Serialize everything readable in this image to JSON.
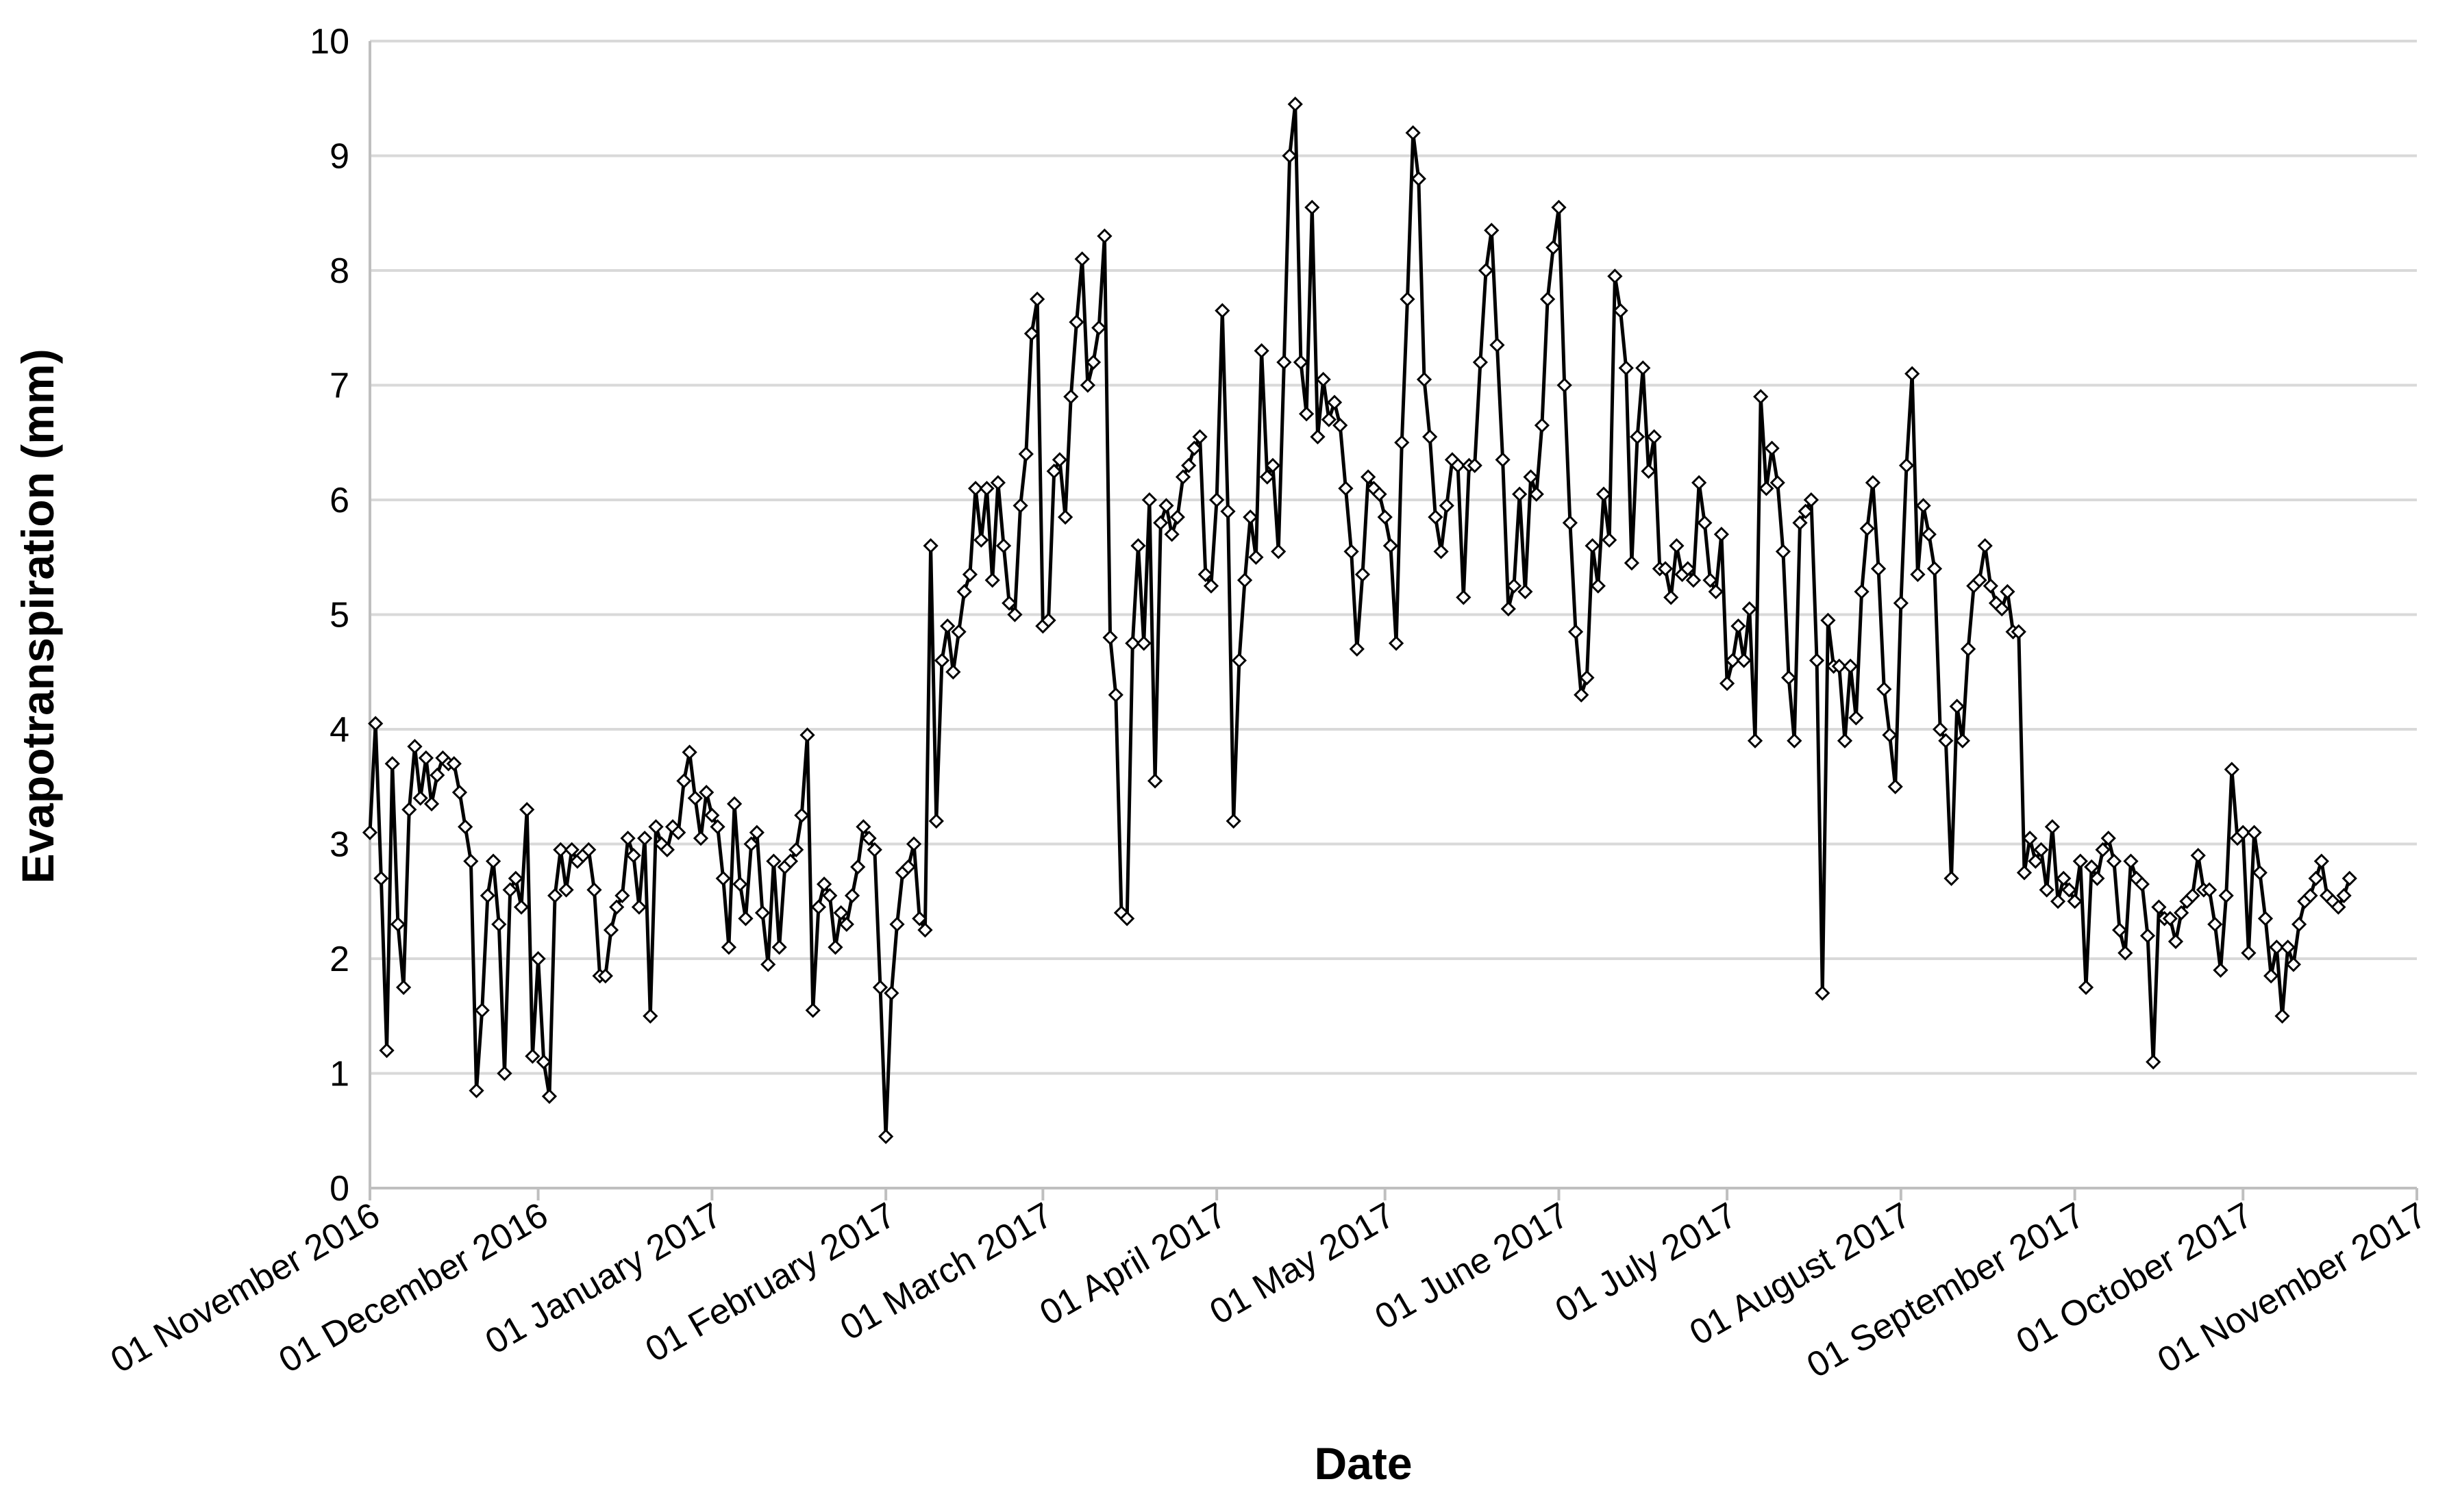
{
  "chart_data": {
    "type": "line",
    "xlabel": "Date",
    "ylabel": "Evapotranspiration (mm)",
    "ylim": [
      0,
      10
    ],
    "yticks": [
      0,
      1,
      2,
      3,
      4,
      5,
      6,
      7,
      8,
      9,
      10
    ],
    "xlim": [
      "2016-11-01",
      "2017-11-01"
    ],
    "xticks": [
      {
        "date": "2016-11-01",
        "label": "01 November 2016"
      },
      {
        "date": "2016-12-01",
        "label": "01 December 2016"
      },
      {
        "date": "2017-01-01",
        "label": "01 January 2017"
      },
      {
        "date": "2017-02-01",
        "label": "01 February 2017"
      },
      {
        "date": "2017-03-01",
        "label": "01 March 2017"
      },
      {
        "date": "2017-04-01",
        "label": "01 April 2017"
      },
      {
        "date": "2017-05-01",
        "label": "01 May 2017"
      },
      {
        "date": "2017-06-01",
        "label": "01 June 2017"
      },
      {
        "date": "2017-07-01",
        "label": "01 July 2017"
      },
      {
        "date": "2017-08-01",
        "label": "01 August 2017"
      },
      {
        "date": "2017-09-01",
        "label": "01 September 2017"
      },
      {
        "date": "2017-10-01",
        "label": "01 October 2017"
      },
      {
        "date": "2017-11-01",
        "label": "01 November 2017"
      }
    ],
    "grid": "horizontal",
    "legend": "none",
    "line_color": "#000000",
    "grid_color": "#d9d9d9",
    "marker": "open-diamond",
    "series": [
      {
        "x_start": "2016-11-01",
        "step_days": 1,
        "values": [
          3.1,
          4.05,
          2.7,
          1.2,
          3.7,
          2.3,
          1.75,
          3.3,
          3.85,
          3.4,
          3.75,
          3.35,
          3.6,
          3.75,
          3.7,
          3.7,
          3.45,
          3.15,
          2.85,
          0.85,
          1.55,
          2.55,
          2.85,
          2.3,
          1.0,
          2.6,
          2.7,
          2.45,
          3.3,
          1.15,
          2.0,
          1.1,
          0.8,
          2.55,
          2.95,
          2.6,
          2.95,
          2.85,
          2.9,
          2.95,
          2.6,
          1.85,
          1.85,
          2.25,
          2.45,
          2.55,
          3.05,
          2.9,
          2.45,
          3.05,
          1.5,
          3.15,
          3.0,
          2.95,
          3.15,
          3.1,
          3.55,
          3.8,
          3.4,
          3.05,
          3.45,
          3.25,
          3.15,
          2.7,
          2.1,
          3.35,
          2.65,
          2.35,
          3.0,
          3.1,
          2.4,
          1.95,
          2.85,
          2.1,
          2.8,
          2.85,
          2.95,
          3.25,
          3.95,
          1.55,
          2.45,
          2.65,
          2.55,
          2.1,
          2.4,
          2.3,
          2.55,
          2.8,
          3.15,
          3.05,
          2.95,
          1.75,
          0.45,
          1.7,
          2.3,
          2.75,
          2.8,
          3.0,
          2.35,
          2.25,
          5.6,
          3.2,
          4.6,
          4.9,
          4.5,
          4.85,
          5.2,
          5.35,
          6.1,
          5.65,
          6.1,
          5.3,
          6.15,
          5.6,
          5.1,
          5.0,
          5.95,
          6.4,
          7.45,
          7.75,
          4.9,
          4.95,
          6.25,
          6.35,
          5.85,
          6.9,
          7.55,
          8.1,
          7.0,
          7.2,
          7.5,
          8.3,
          4.8,
          4.3,
          2.4,
          2.35,
          4.75,
          5.6,
          4.75,
          6.0,
          3.55,
          5.8,
          5.95,
          5.7,
          5.85,
          6.2,
          6.3,
          6.45,
          6.55,
          5.35,
          5.25,
          6.0,
          7.65,
          5.9,
          3.2,
          4.6,
          5.3,
          5.85,
          5.5,
          7.3,
          6.2,
          6.3,
          5.55,
          7.2,
          9.0,
          9.45,
          7.2,
          6.75,
          8.55,
          6.55,
          7.05,
          6.7,
          6.85,
          6.65,
          6.1,
          5.55,
          4.7,
          5.35,
          6.2,
          6.1,
          6.05,
          5.85,
          5.6,
          4.75,
          6.5,
          7.75,
          9.2,
          8.8,
          7.05,
          6.55,
          5.85,
          5.55,
          5.95,
          6.35,
          6.3,
          5.15,
          6.3,
          6.3,
          7.2,
          8.0,
          8.35,
          7.35,
          6.35,
          5.05,
          5.25,
          6.05,
          5.2,
          6.2,
          6.05,
          6.65,
          7.75,
          8.2,
          8.55,
          7.0,
          5.8,
          4.85,
          4.3,
          4.45,
          5.6,
          5.25,
          6.05,
          5.65,
          7.95,
          7.65,
          7.15,
          5.45,
          6.55,
          7.15,
          6.25,
          6.55,
          5.4,
          5.4,
          5.15,
          5.6,
          5.35,
          5.4,
          5.3,
          6.15,
          5.8,
          5.3,
          5.2,
          5.7,
          4.4,
          4.6,
          4.9,
          4.6,
          5.05,
          3.9,
          6.9,
          6.1,
          6.45,
          6.15,
          5.55,
          4.45,
          3.9,
          5.8,
          5.9,
          6.0,
          4.6,
          1.7,
          4.95,
          4.55,
          4.55,
          3.9,
          4.55,
          4.1,
          5.2,
          5.75,
          6.15,
          5.4,
          4.35,
          3.95,
          3.5,
          5.1,
          6.3,
          7.1,
          5.35,
          5.95,
          5.7,
          5.4,
          4.0,
          3.9,
          2.7,
          4.2,
          3.9,
          4.7,
          5.25,
          5.3,
          5.6,
          5.25,
          5.1,
          5.05,
          5.2,
          4.85,
          4.85,
          2.75,
          3.05,
          2.85,
          2.95,
          2.6,
          3.15,
          2.5,
          2.7,
          2.6,
          2.5,
          2.85,
          1.75,
          2.8,
          2.7,
          2.95,
          3.05,
          2.85,
          2.25,
          2.05,
          2.85,
          2.7,
          2.65,
          2.2,
          1.1,
          2.45,
          2.35,
          2.35,
          2.15,
          2.4,
          2.5,
          2.55,
          2.9,
          2.6,
          2.6,
          2.3,
          1.9,
          2.55,
          3.65,
          3.05,
          3.1,
          2.05,
          3.1,
          2.75,
          2.35,
          1.85,
          2.1,
          1.5,
          2.1,
          1.95,
          2.3,
          2.5,
          2.55,
          2.7,
          2.85,
          2.55,
          2.5,
          2.45,
          2.55,
          2.7
        ]
      }
    ]
  }
}
